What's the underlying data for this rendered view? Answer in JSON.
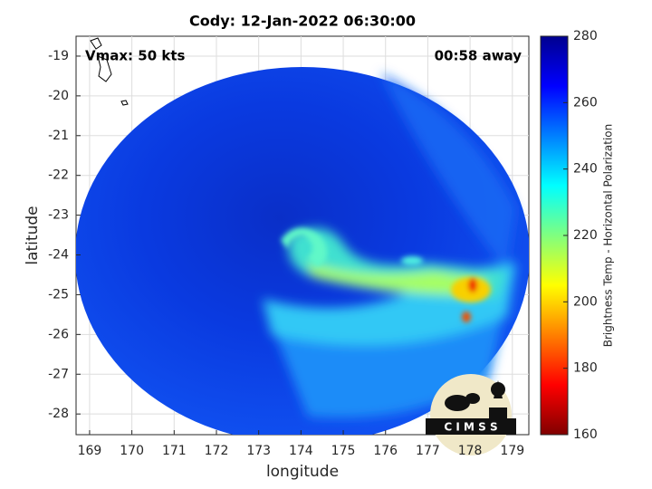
{
  "chart_data": {
    "type": "image",
    "title": "Cody: 12-Jan-2022 06:30:00",
    "annotations": [
      "Vmax: 50 kts",
      "00:58 away"
    ],
    "xlabel": "longitude",
    "ylabel": "latitude",
    "xlim": [
      168.68,
      179.39
    ],
    "xticks": [
      169,
      170,
      171,
      172,
      173,
      174,
      175,
      176,
      177,
      178,
      179
    ],
    "ylim": [
      -28.52,
      -18.5
    ],
    "yticks": [
      -28,
      -27,
      -26,
      -25,
      -24,
      -23,
      -22,
      -21,
      -20,
      -19
    ],
    "grid": true,
    "colorbar": {
      "label": "Brightness Temp - Horizontal Polarization",
      "lim": [
        160,
        280
      ],
      "ticks": [
        160,
        180,
        200,
        220,
        240,
        260,
        280
      ],
      "colormap": "jet"
    },
    "logo": "C I M S S"
  }
}
